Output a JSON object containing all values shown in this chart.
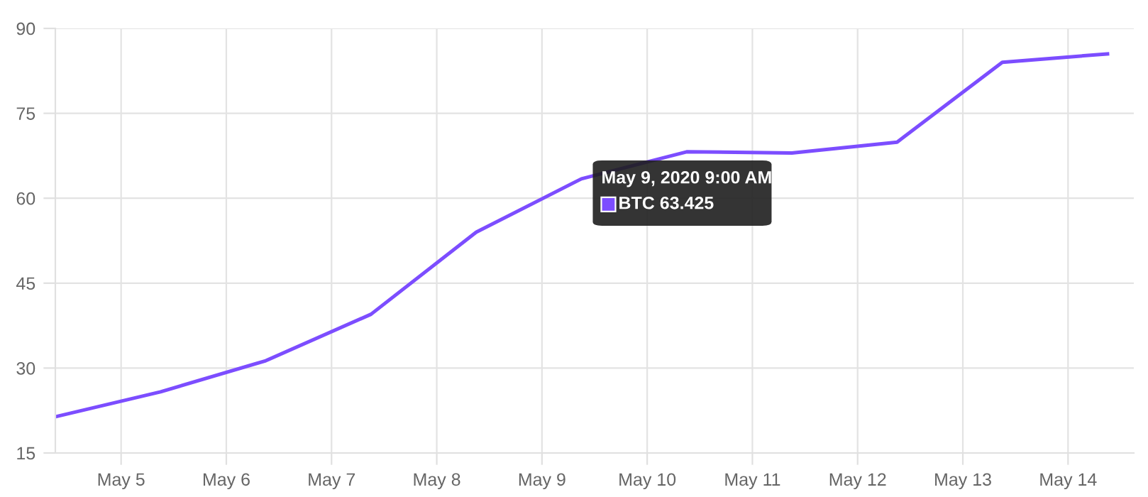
{
  "chart_data": {
    "type": "line",
    "x": [
      "2020-05-04T09:00",
      "2020-05-05T09:00",
      "2020-05-06T09:00",
      "2020-05-07T09:00",
      "2020-05-08T09:00",
      "2020-05-09T09:00",
      "2020-05-10T09:00",
      "2020-05-11T09:00",
      "2020-05-12T09:00",
      "2020-05-13T09:00",
      "2020-05-14T09:00"
    ],
    "series": [
      {
        "color": "#7c4dff",
        "values": [
          21.4,
          25.8,
          31.3,
          39.5,
          54.0,
          63.425,
          68.2,
          68.0,
          69.9,
          84.0,
          85.5
        ]
      }
    ],
    "xlim": [
      "2020-05-04T09:00",
      "2020-05-14T15:00"
    ],
    "xticks": [
      {
        "value": "2020-05-05",
        "label": "May 5"
      },
      {
        "value": "2020-05-06",
        "label": "May 6"
      },
      {
        "value": "2020-05-07",
        "label": "May 7"
      },
      {
        "value": "2020-05-08",
        "label": "May 8"
      },
      {
        "value": "2020-05-09",
        "label": "May 9"
      },
      {
        "value": "2020-05-10",
        "label": "May 10"
      },
      {
        "value": "2020-05-11",
        "label": "May 11"
      },
      {
        "value": "2020-05-12",
        "label": "May 12"
      },
      {
        "value": "2020-05-13",
        "label": "May 13"
      },
      {
        "value": "2020-05-14",
        "label": "May 14"
      }
    ],
    "ylim": [
      15,
      90
    ],
    "yticks": [
      15,
      30,
      45,
      60,
      75,
      90
    ],
    "grid": true,
    "marker": "none",
    "line_style": "solid",
    "annotations": [
      {
        "text": "May 9, 2020 9:00 AM",
        "x": "2020-05-09T09:00",
        "y": 63.425
      },
      {
        "text": "BTC 63.425",
        "x": "2020-05-09T09:00",
        "y": 63.425
      }
    ]
  }
}
